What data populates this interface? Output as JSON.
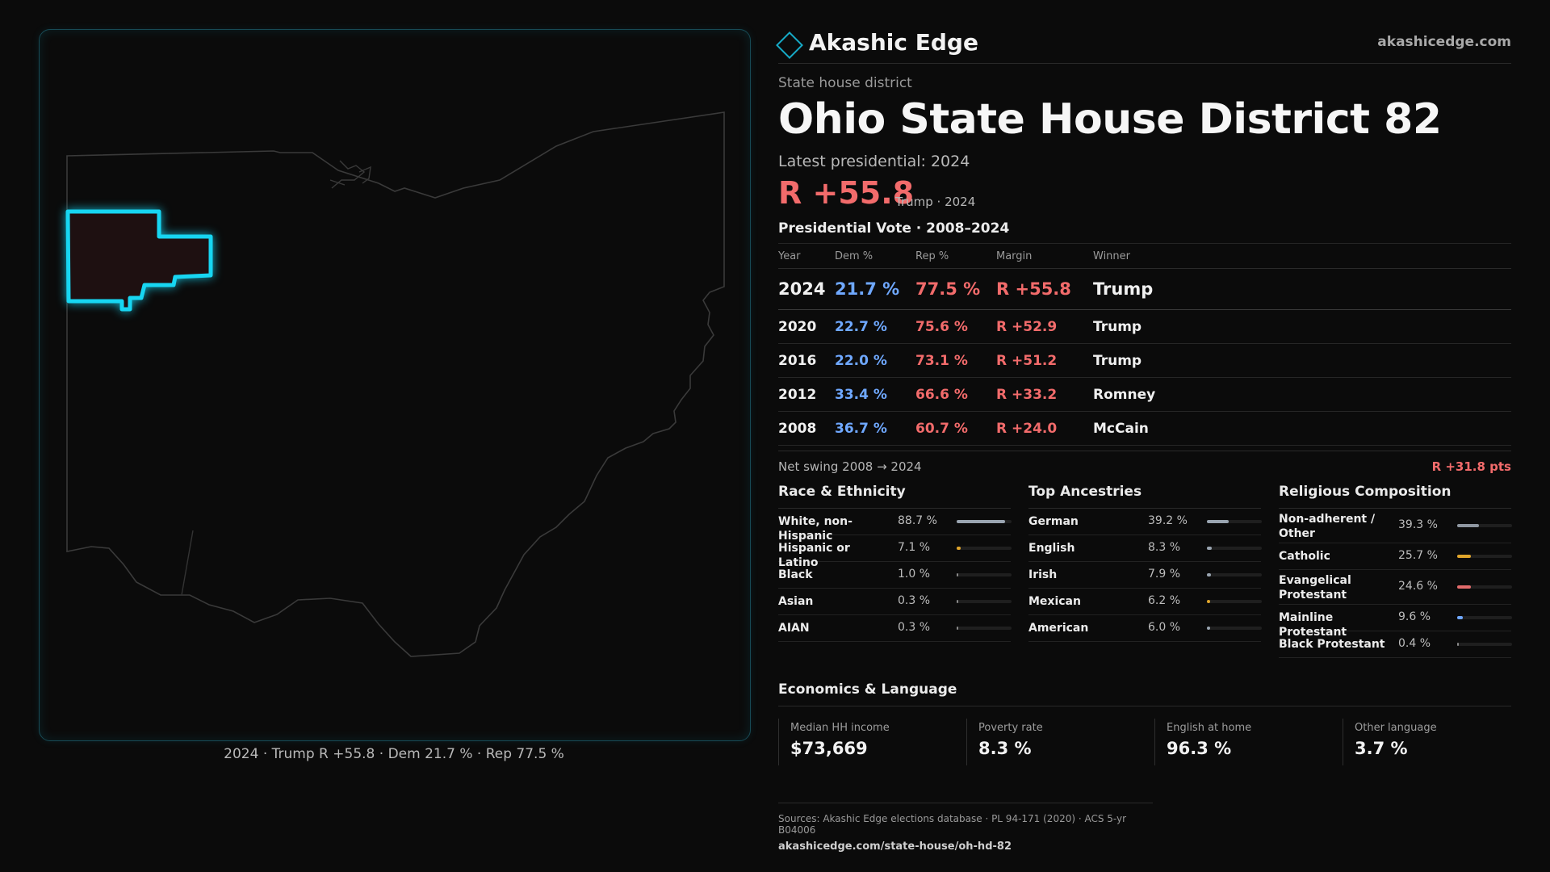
{
  "brand": {
    "name": "Akashic Edge",
    "url": "akashicedge.com"
  },
  "header": {
    "kicker": "State house district",
    "title": "Ohio State House District 82",
    "latest": "Latest presidential: 2024",
    "margin": "R +55.8",
    "margin_sub": "Trump · 2024"
  },
  "map": {
    "caption": "2024 · Trump R +55.8 · Dem 21.7 % · Rep 77.5 %"
  },
  "presidential": {
    "title": "Presidential Vote · 2008–2024",
    "headers": [
      "Year",
      "Dem %",
      "Rep %",
      "Margin",
      "Winner"
    ],
    "rows": [
      {
        "year": "2024",
        "dem": "21.7 %",
        "rep": "77.5 %",
        "margin": "R +55.8",
        "winner": "Trump"
      },
      {
        "year": "2020",
        "dem": "22.7 %",
        "rep": "75.6 %",
        "margin": "R +52.9",
        "winner": "Trump"
      },
      {
        "year": "2016",
        "dem": "22.0 %",
        "rep": "73.1 %",
        "margin": "R +51.2",
        "winner": "Trump"
      },
      {
        "year": "2012",
        "dem": "33.4 %",
        "rep": "66.6 %",
        "margin": "R +33.2",
        "winner": "Romney"
      },
      {
        "year": "2008",
        "dem": "36.7 %",
        "rep": "60.7 %",
        "margin": "R +24.0",
        "winner": "McCain"
      }
    ],
    "swing_label": "Net swing 2008 → 2024",
    "swing_value": "R +31.8 pts"
  },
  "race": {
    "title": "Race & Ethnicity",
    "items": [
      {
        "label": "White, non-Hispanic",
        "pct": "88.7 %",
        "value": 88.7,
        "color": "#9aa5b1"
      },
      {
        "label": "Hispanic or Latino",
        "pct": "7.1 %",
        "value": 7.1,
        "color": "#e0a52b"
      },
      {
        "label": "Black",
        "pct": "1.0 %",
        "value": 1.0,
        "color": "#8a8a8a"
      },
      {
        "label": "Asian",
        "pct": "0.3 %",
        "value": 0.3,
        "color": "#8a8a8a"
      },
      {
        "label": "AIAN",
        "pct": "0.3 %",
        "value": 0.3,
        "color": "#8a8a8a"
      }
    ]
  },
  "ancestries": {
    "title": "Top Ancestries",
    "items": [
      {
        "label": "German",
        "pct": "39.2 %",
        "value": 39.2,
        "color": "#9aa5b1"
      },
      {
        "label": "English",
        "pct": "8.3 %",
        "value": 8.3,
        "color": "#9aa5b1"
      },
      {
        "label": "Irish",
        "pct": "7.9 %",
        "value": 7.9,
        "color": "#9aa5b1"
      },
      {
        "label": "Mexican",
        "pct": "6.2 %",
        "value": 6.2,
        "color": "#e0a52b"
      },
      {
        "label": "American",
        "pct": "6.0 %",
        "value": 6.0,
        "color": "#9aa5b1"
      }
    ]
  },
  "religion": {
    "title": "Religious Composition",
    "items": [
      {
        "label": "Non-adherent / Other",
        "pct": "39.3 %",
        "value": 39.3,
        "color": "#8f97a1"
      },
      {
        "label": "Catholic",
        "pct": "25.7 %",
        "value": 25.7,
        "color": "#e0a52b"
      },
      {
        "label": "Evangelical Protestant",
        "pct": "24.6 %",
        "value": 24.6,
        "color": "#e26b6b"
      },
      {
        "label": "Mainline Protestant",
        "pct": "9.6 %",
        "value": 9.6,
        "color": "#6fa8ff"
      },
      {
        "label": "Black Protestant",
        "pct": "0.4 %",
        "value": 0.4,
        "color": "#8a8a8a"
      }
    ]
  },
  "economics": {
    "title": "Economics & Language",
    "cards": [
      {
        "label": "Median HH income",
        "value": "$73,669"
      },
      {
        "label": "Poverty rate",
        "value": "8.3 %"
      },
      {
        "label": "English at home",
        "value": "96.3 %"
      },
      {
        "label": "Other language",
        "value": "3.7 %"
      }
    ]
  },
  "footer": {
    "sources": "Sources: Akashic Edge elections database · PL 94-171 (2020) · ACS 5-yr B04006",
    "link": "akashicedge.com/state-house/oh-hd-82"
  }
}
